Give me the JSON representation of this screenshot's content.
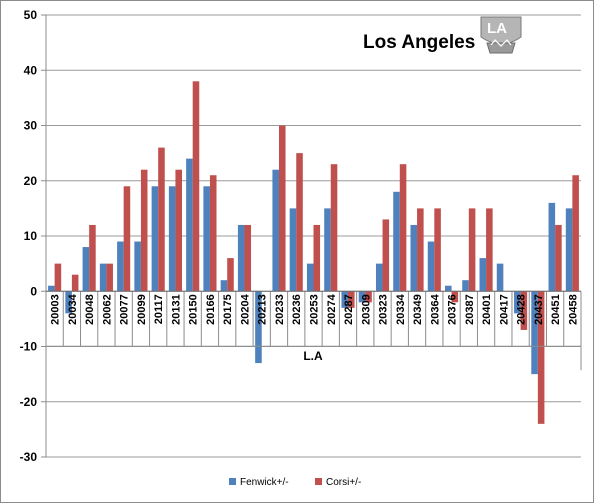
{
  "chart_data": {
    "type": "bar",
    "title": "Los Angeles",
    "group_label": "L.A",
    "categories": [
      "20003",
      "20034",
      "20048",
      "20062",
      "20077",
      "20099",
      "20117",
      "20131",
      "20150",
      "20166",
      "20175",
      "20204",
      "20213",
      "20233",
      "20236",
      "20253",
      "20274",
      "20287",
      "20309",
      "20323",
      "20334",
      "20349",
      "20364",
      "20376",
      "20387",
      "20401",
      "20417",
      "20428",
      "20437",
      "20451",
      "20458"
    ],
    "series": [
      {
        "name": "Fenwick+/-",
        "color": "#4f81bd",
        "values": [
          1,
          -4,
          8,
          5,
          9,
          9,
          19,
          19,
          24,
          19,
          2,
          12,
          -13,
          22,
          15,
          5,
          15,
          -3,
          -2,
          5,
          18,
          12,
          9,
          1,
          2,
          6,
          5,
          -4,
          -15,
          16,
          15
        ]
      },
      {
        "name": "Corsi+/-",
        "color": "#c0504d",
        "values": [
          5,
          3,
          12,
          5,
          19,
          22,
          26,
          22,
          38,
          21,
          6,
          12,
          0,
          30,
          25,
          12,
          23,
          -3,
          -2,
          13,
          23,
          15,
          15,
          -2,
          15,
          15,
          0,
          -7,
          -24,
          12,
          21
        ]
      }
    ],
    "ylim": [
      -30,
      50
    ],
    "yticks": [
      -30,
      -20,
      -10,
      0,
      10,
      20,
      30,
      40,
      50
    ],
    "grid": true,
    "legend_position": "bottom",
    "logo": "la-kings-logo"
  }
}
